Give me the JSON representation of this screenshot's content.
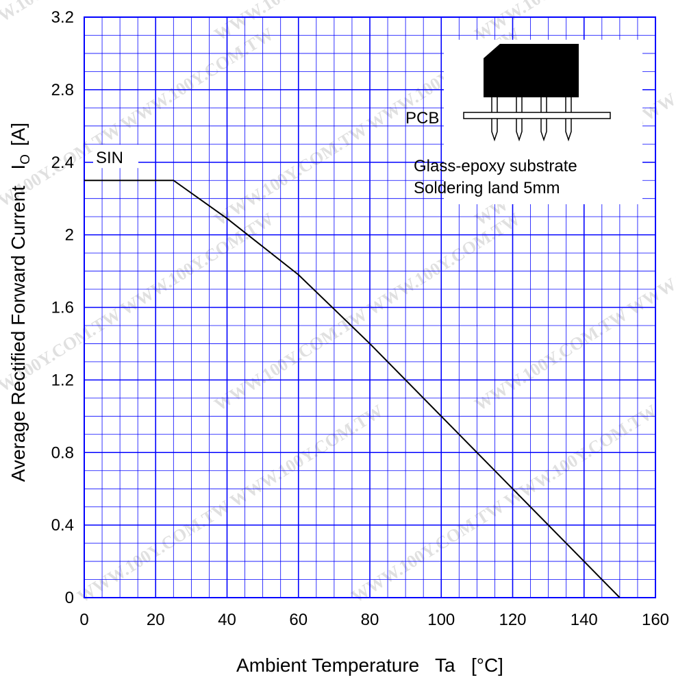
{
  "chart_data": {
    "type": "line",
    "xlabel": "Ambient Temperature   Ta   [°C]",
    "ylabel": "Average Rectified Forward Current   I",
    "ylabel_sub": "O",
    "ylabel_unit": "[A]",
    "xlim": [
      0,
      160
    ],
    "ylim": [
      0,
      3.2
    ],
    "x_ticks": [
      0,
      20,
      40,
      60,
      80,
      100,
      120,
      140,
      160
    ],
    "y_ticks": [
      0,
      0.4,
      0.8,
      1.2,
      1.6,
      2,
      2.4,
      2.8,
      3.2
    ],
    "x_tick_labels": [
      "0",
      "20",
      "40",
      "60",
      "80",
      "100",
      "120",
      "140",
      "160"
    ],
    "y_tick_labels": [
      "0",
      "0.4",
      "0.8",
      "1.2",
      "1.6",
      "2",
      "2.4",
      "2.8",
      "3.2"
    ],
    "grid": true,
    "minor_grid_x_step": 5,
    "minor_grid_y_step": 0.1,
    "grid_color": "#0000ff",
    "series": [
      {
        "name": "SIN",
        "x": [
          0,
          25,
          40,
          60,
          80,
          100,
          120,
          140,
          150
        ],
        "y": [
          2.3,
          2.3,
          2.09,
          1.78,
          1.4,
          1.0,
          0.6,
          0.2,
          0
        ]
      }
    ],
    "annotations": {
      "pcb": "PCB",
      "substrate": "Glass-epoxy  substrate",
      "soldering": "Soldering  land  5mm"
    }
  },
  "watermark": "WWW.100Y.COM.TW"
}
